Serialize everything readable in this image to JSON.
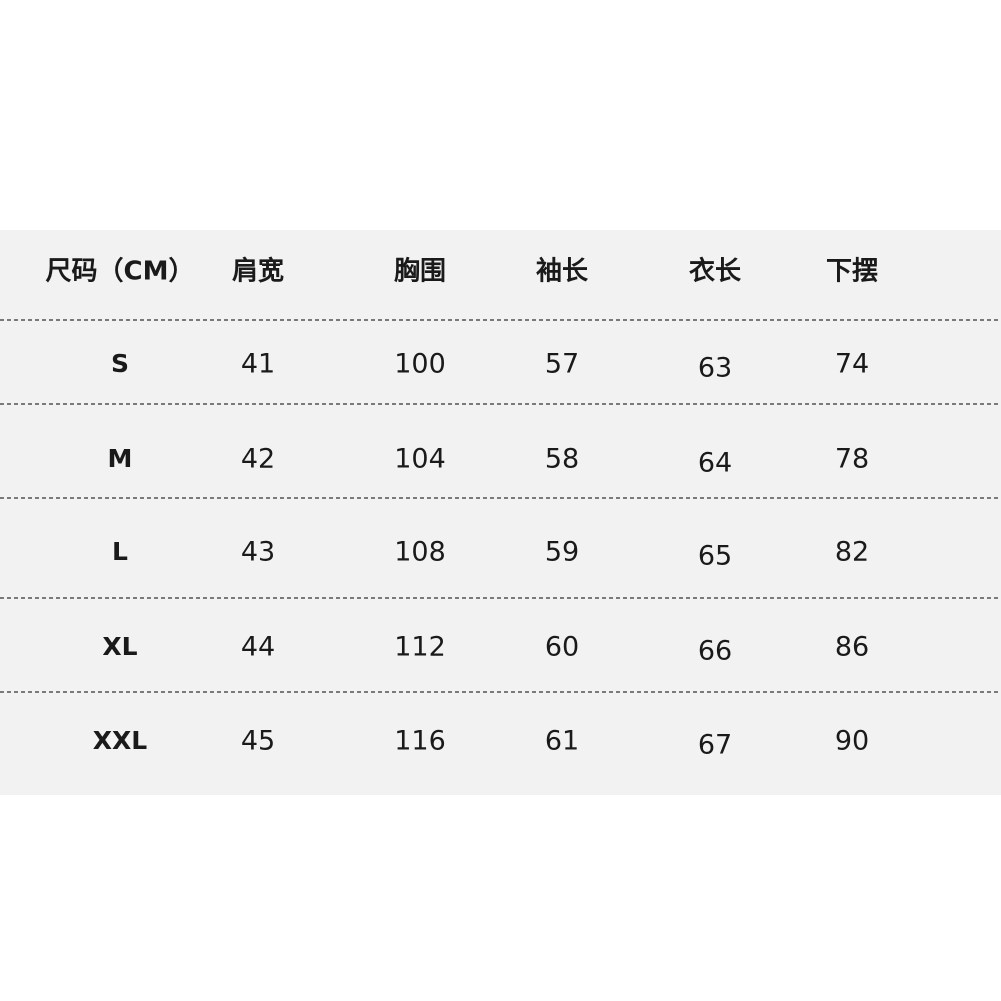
{
  "table": {
    "header": [
      "尺码（CM）",
      "肩宽",
      "胸围",
      "袖长",
      "衣长",
      "下摆"
    ],
    "rows": [
      [
        "S",
        41,
        100,
        57,
        63,
        74
      ],
      [
        "M",
        42,
        104,
        58,
        64,
        78
      ],
      [
        "L",
        43,
        108,
        59,
        65,
        82
      ],
      [
        "XL",
        44,
        112,
        60,
        66,
        86
      ],
      [
        "XXL",
        45,
        116,
        61,
        67,
        90
      ]
    ]
  }
}
